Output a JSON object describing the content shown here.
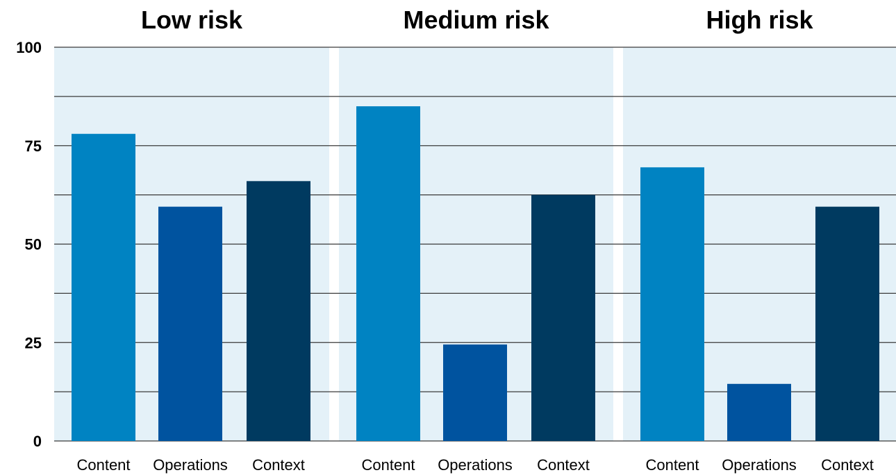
{
  "chart_data": {
    "type": "bar",
    "ylim": [
      0,
      100
    ],
    "yticks": [
      "0",
      "25",
      "50",
      "75",
      "100"
    ],
    "grid": true,
    "colors": {
      "panel_bg": "#e4f1f8",
      "Content": "#0083c2",
      "Operations": "#00539f",
      "Context": "#003a60"
    },
    "panels": [
      {
        "title": "Low risk",
        "categories": [
          "Content",
          "Operations",
          "Context"
        ],
        "values": [
          78,
          59.5,
          66
        ]
      },
      {
        "title": "Medium risk",
        "categories": [
          "Content",
          "Operations",
          "Context"
        ],
        "values": [
          85,
          24.5,
          62.5
        ]
      },
      {
        "title": "High risk",
        "categories": [
          "Content",
          "Operations",
          "Context"
        ],
        "values": [
          69.5,
          14.5,
          59.5
        ]
      }
    ]
  }
}
